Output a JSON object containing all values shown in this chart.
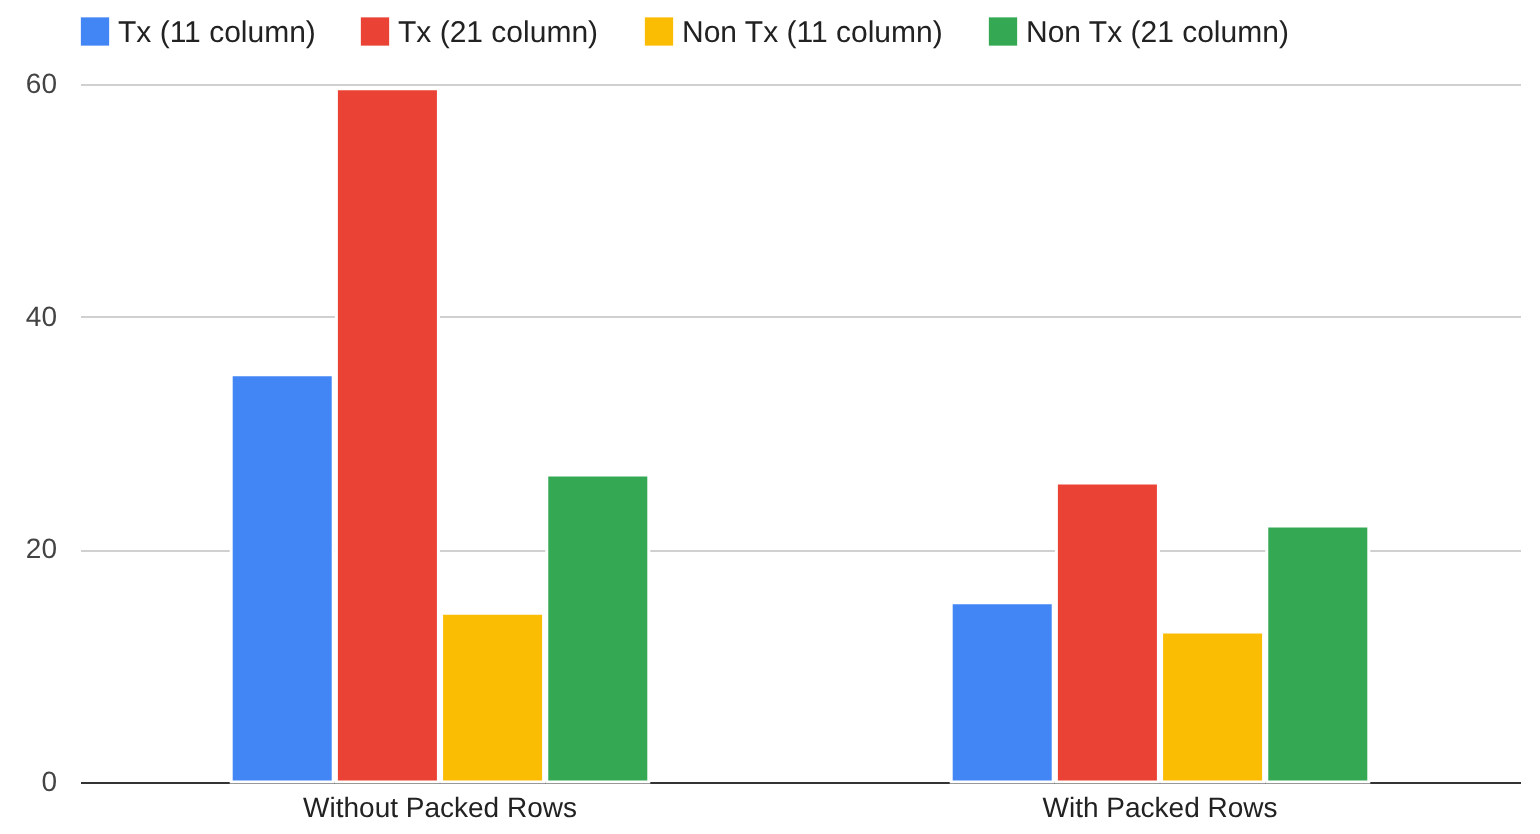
{
  "chart_data": {
    "type": "bar",
    "categories": [
      "Without Packed Rows",
      "With Packed Rows"
    ],
    "series": [
      {
        "name": "Tx (11 column)",
        "color": "#4285f4",
        "values": [
          35.0,
          15.4
        ]
      },
      {
        "name": "Tx (21 column)",
        "color": "#ea4335",
        "values": [
          59.6,
          25.7
        ]
      },
      {
        "name": "Non Tx (11 column)",
        "color": "#fbbc04",
        "values": [
          14.5,
          12.9
        ]
      },
      {
        "name": "Non Tx (21 column)",
        "color": "#34a853",
        "values": [
          26.4,
          22.0
        ]
      }
    ],
    "ylim": [
      0,
      60
    ],
    "yticks": [
      0,
      20,
      40,
      60
    ],
    "grid": "y",
    "legend": "top"
  }
}
